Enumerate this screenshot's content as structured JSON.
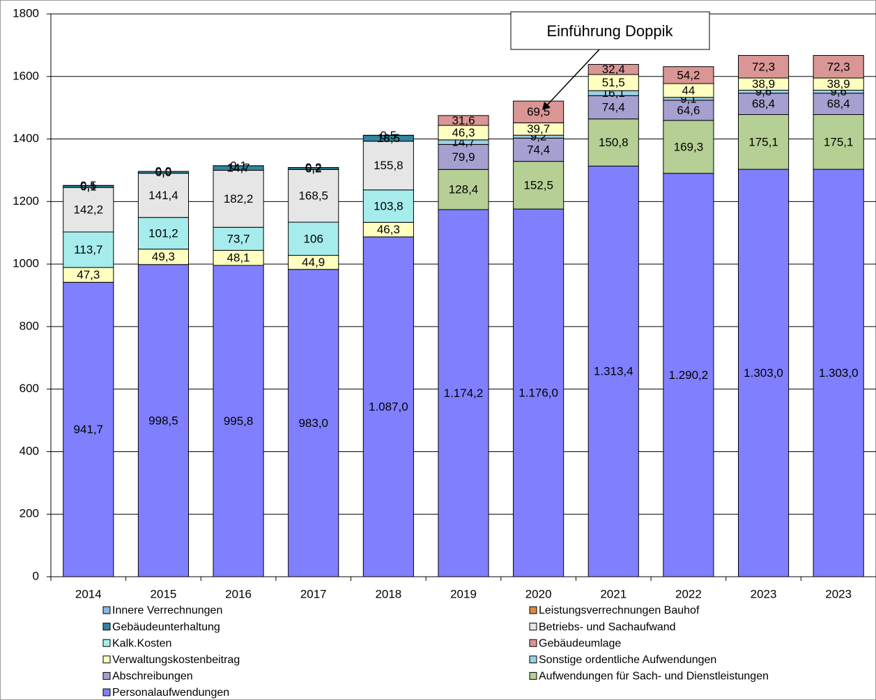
{
  "chart_data": {
    "type": "stacked_bar",
    "annotation": "Einführung Doppik",
    "categories": [
      "2014",
      "2015",
      "2016",
      "2017",
      "2018",
      "2019",
      "2020",
      "2021",
      "2022",
      "2023",
      "2023"
    ],
    "ylim": [
      0,
      1800
    ],
    "yticks": [
      0,
      200,
      400,
      600,
      800,
      1000,
      1200,
      1400,
      1600,
      1800
    ],
    "grid": true,
    "series": [
      {
        "name": "Innere Verrechnungen",
        "color": "#8db4e2",
        "values": [
          0.5,
          0,
          0.1,
          0.2,
          0.5,
          null,
          null,
          null,
          null,
          null,
          null
        ],
        "value_labels": [
          "0,5",
          "0,0",
          "0,1",
          "0,2",
          "0,5",
          null,
          null,
          null,
          null,
          null,
          null
        ]
      },
      {
        "name": "Leistungsverrechnungen Bauhof",
        "color": "#e0873c",
        "values": [
          null,
          null,
          null,
          null,
          null,
          null,
          null,
          null,
          null,
          null,
          null
        ]
      },
      {
        "name": "Gebäudeunterhaltung",
        "color": "#31859c",
        "values": [
          6.1,
          6,
          14.7,
          6.2,
          18.5,
          null,
          null,
          null,
          null,
          null,
          null
        ],
        "value_labels": [
          "6,1",
          "6,0",
          "14,7",
          "6,2",
          "18,5",
          null,
          null,
          null,
          null,
          null,
          null
        ]
      },
      {
        "name": "Betriebs- und Sachaufwand",
        "color": "#e6e6e6",
        "values": [
          142.2,
          141.4,
          182.2,
          168.5,
          155.8,
          null,
          null,
          null,
          null,
          null,
          null
        ],
        "value_labels": [
          "142,2",
          "141,4",
          "182,2",
          "168,5",
          "155,8",
          null,
          null,
          null,
          null,
          null,
          null
        ]
      },
      {
        "name": "Kalk.Kosten",
        "color": "#a6ecec",
        "values": [
          113.7,
          101.2,
          73.7,
          106,
          103.8,
          null,
          null,
          null,
          null,
          null,
          null
        ],
        "value_labels": [
          "113,7",
          "101,2",
          "73,7",
          "106",
          "103,8",
          null,
          null,
          null,
          null,
          null,
          null
        ]
      },
      {
        "name": "Gebäudeumlage",
        "color": "#d99694",
        "values": [
          null,
          null,
          null,
          null,
          null,
          31.6,
          69.5,
          32.4,
          54.2,
          72.3,
          72.3
        ],
        "value_labels": [
          null,
          null,
          null,
          null,
          null,
          "31,6",
          "69,5",
          "32,4",
          "54,2",
          "72,3",
          "72,3"
        ]
      },
      {
        "name": "Verwaltungskostenbeitrag",
        "color": "#ffffc0",
        "values": [
          47.3,
          49.3,
          48.1,
          44.9,
          46.3,
          46.3,
          39.7,
          51.5,
          44,
          38.9,
          38.9
        ],
        "value_labels": [
          "47,3",
          "49,3",
          "48,1",
          "44,9",
          "46,3",
          "46,3",
          "39,7",
          "51,5",
          "44",
          "38,9",
          "38,9"
        ]
      },
      {
        "name": "Sonstige ordentliche Aufwendungen",
        "color": "#9bd0e6",
        "values": [
          null,
          null,
          null,
          null,
          null,
          14.7,
          9.2,
          16.1,
          9.1,
          9.6,
          9.6
        ],
        "value_labels": [
          null,
          null,
          null,
          null,
          null,
          "14,7",
          "9,2",
          "16,1",
          "9,1",
          "9,6",
          "9,6"
        ]
      },
      {
        "name": "Abschreibungen",
        "color": "#a6a0d0",
        "values": [
          null,
          null,
          null,
          null,
          null,
          79.9,
          74.4,
          74.4,
          64.6,
          68.4,
          68.4
        ],
        "value_labels": [
          null,
          null,
          null,
          null,
          null,
          "79,9",
          "74,4",
          "74,4",
          "64,6",
          "68,4",
          "68,4"
        ]
      },
      {
        "name": "Aufwendungen für Sach- und Dienstleistungen",
        "color": "#b5cf94",
        "values": [
          null,
          null,
          null,
          null,
          null,
          128.4,
          152.5,
          150.8,
          169.3,
          175.1,
          175.1
        ],
        "value_labels": [
          null,
          null,
          null,
          null,
          null,
          "128,4",
          "152,5",
          "150,8",
          "169,3",
          "175,1",
          "175,1"
        ]
      },
      {
        "name": "Personalaufwendungen",
        "color": "#8080ff",
        "values": [
          941.7,
          998.5,
          995.8,
          983,
          1087,
          1174.2,
          1176,
          1313.4,
          1290.2,
          1303,
          1303
        ],
        "value_labels": [
          "941,7",
          "998,5",
          "995,8",
          "983,0",
          "1.087,0",
          "1.174,2",
          "1.176,0",
          "1.313,4",
          "1.290,2",
          "1.303,0",
          "1.303,0"
        ]
      }
    ]
  }
}
